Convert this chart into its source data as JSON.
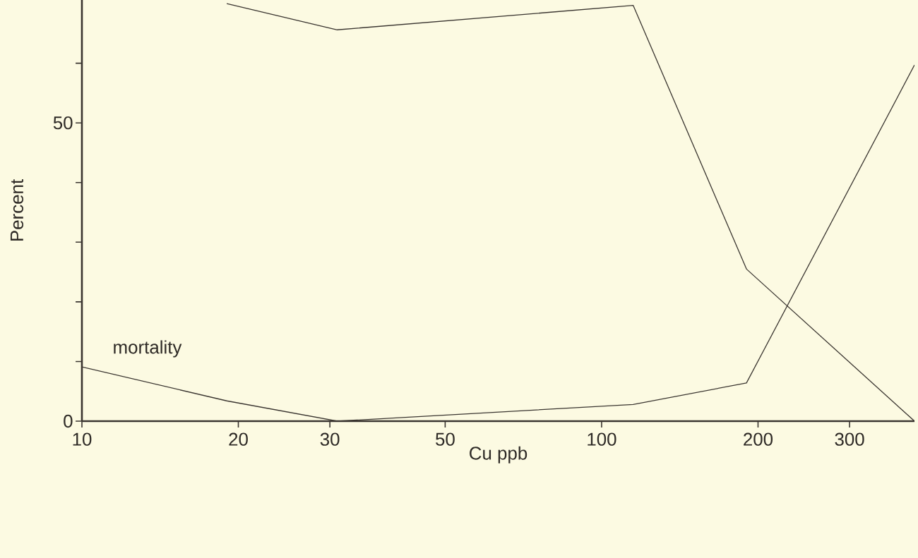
{
  "chart_data": {
    "type": "line",
    "xlabel": "Cu ppb",
    "ylabel": "Percent",
    "log": "x",
    "xlim": [
      10,
      400
    ],
    "xticks": [
      10,
      20,
      30,
      50,
      100,
      200,
      300
    ],
    "ylim": [
      0,
      70.6
    ],
    "yticks": [
      0,
      {
        "value": 10,
        "label": null
      },
      {
        "value": 20,
        "label": null
      },
      {
        "value": 30,
        "label": null
      },
      {
        "value": 40,
        "label": null
      },
      50,
      {
        "value": 60,
        "label": null
      }
    ],
    "marker": "none",
    "line_style": "solid",
    "grid": false,
    "legend": false,
    "series": [
      {
        "color": "#3a3530",
        "x": [
          19,
          31,
          115,
          190,
          400
        ],
        "values": [
          70,
          65.6,
          69.7,
          25.5,
          0
        ]
      },
      {
        "name": "mortality",
        "color": "#3a3530",
        "x": [
          10,
          19,
          31,
          115,
          190,
          400
        ],
        "values": [
          9.1,
          3.4,
          0,
          2.8,
          6.4,
          59.7
        ]
      }
    ]
  }
}
